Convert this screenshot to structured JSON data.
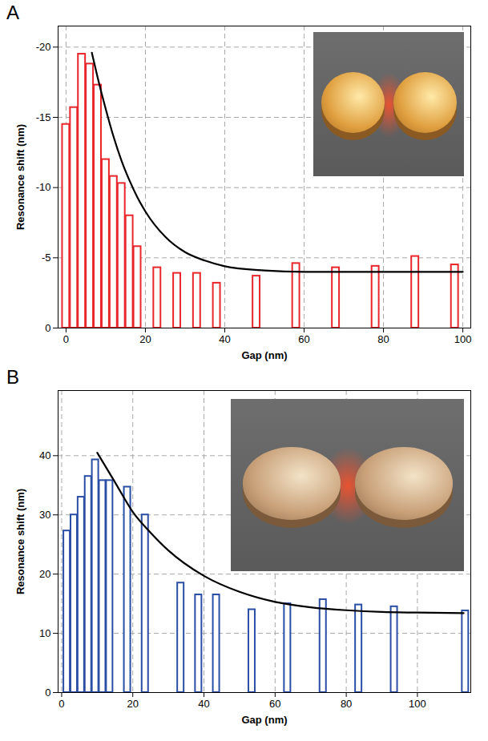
{
  "chart_data": [
    {
      "type": "bar",
      "title": "A",
      "xlabel": "Gap (nm)",
      "ylabel": "Resonance shift (nm)",
      "xlim": [
        -2,
        102
      ],
      "xticks": [
        0,
        20,
        40,
        60,
        80,
        100
      ],
      "ylim": [
        0,
        -21.5
      ],
      "yticks": [
        0,
        -5,
        -10,
        -15,
        -20
      ],
      "grid": true,
      "series": [
        {
          "type": "bar",
          "color": "#e8262b",
          "x": [
            0,
            2,
            4,
            6,
            8,
            10,
            12,
            14,
            16,
            18,
            23,
            28,
            33,
            38,
            48,
            58,
            68,
            78,
            88,
            98
          ],
          "values": [
            -14.5,
            -15.7,
            -19.5,
            -18.8,
            -17.3,
            -12.0,
            -10.8,
            -10.3,
            -8.0,
            -5.8,
            -4.3,
            -3.9,
            -3.9,
            -3.2,
            -3.7,
            -4.6,
            -4.3,
            -4.4,
            -5.1,
            -4.5
          ]
        },
        {
          "type": "line",
          "color": "#000000",
          "x": [
            6.5,
            8,
            10,
            12,
            14,
            16,
            18,
            20,
            25,
            30,
            35,
            40,
            50,
            60,
            70,
            80,
            90,
            100
          ],
          "values": [
            -19.6,
            -17.8,
            -15.6,
            -13.6,
            -11.9,
            -10.5,
            -9.3,
            -8.3,
            -6.5,
            -5.4,
            -4.8,
            -4.4,
            -4.1,
            -4.0,
            -4.0,
            -4.0,
            -4.0,
            -4.0
          ]
        }
      ]
    },
    {
      "type": "bar",
      "title": "B",
      "xlabel": "Gap (nm)",
      "ylabel": "Resonance shift (nm)",
      "xlim": [
        -1,
        115
      ],
      "xticks": [
        0,
        20,
        40,
        60,
        80,
        100
      ],
      "ylim": [
        0,
        51
      ],
      "yticks": [
        0,
        10,
        20,
        30,
        40
      ],
      "grid": true,
      "series": [
        {
          "type": "bar",
          "color": "#2a4ea5",
          "x": [
            1.5,
            3.5,
            5.5,
            7.5,
            9.5,
            11.5,
            13.5,
            18.5,
            23.5,
            33.5,
            38.5,
            43.5,
            53.5,
            63.5,
            73.5,
            83.5,
            93.5,
            113.5
          ],
          "values": [
            27.3,
            30.0,
            33.0,
            36.5,
            39.3,
            35.8,
            35.8,
            34.7,
            30.0,
            18.5,
            16.5,
            16.5,
            14.0,
            15.0,
            15.7,
            14.8,
            14.5,
            13.8
          ]
        },
        {
          "type": "line",
          "color": "#000000",
          "x": [
            10,
            15,
            20,
            25,
            30,
            40,
            50,
            60,
            70,
            80,
            90,
            100,
            113
          ],
          "values": [
            40.5,
            35.5,
            30.5,
            27.0,
            24.0,
            19.7,
            17.0,
            15.3,
            14.4,
            13.9,
            13.6,
            13.5,
            13.4
          ]
        }
      ]
    }
  ]
}
